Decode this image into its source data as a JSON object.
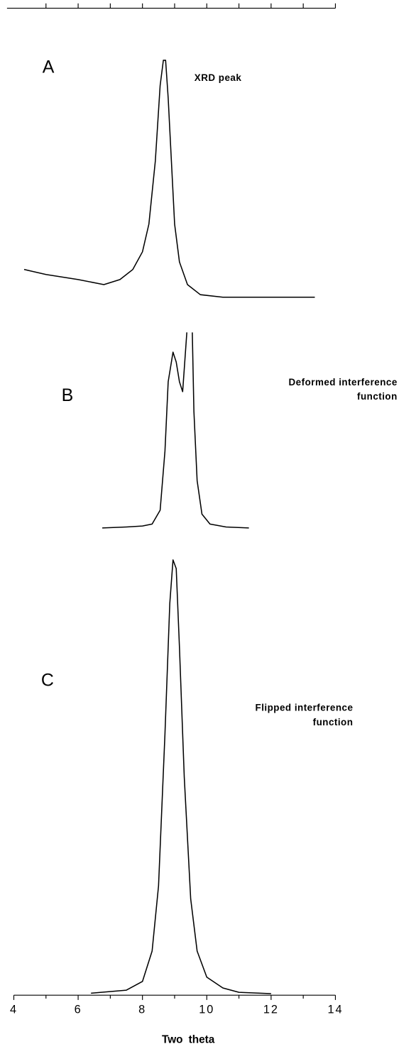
{
  "chart_data": [
    {
      "type": "line",
      "label": "A",
      "annotation": [
        "XRD peak"
      ],
      "color": "#000000",
      "xlim": [
        4,
        14
      ],
      "ylim": [
        0,
        100
      ],
      "xticks": [
        5,
        6,
        7,
        8,
        9,
        10,
        11,
        12,
        13,
        14
      ],
      "tick_labels": false,
      "x": [
        4.32,
        5,
        6,
        6.8,
        7.3,
        7.7,
        8.0,
        8.2,
        8.4,
        8.55,
        8.65,
        8.72,
        8.8,
        8.9,
        9.0,
        9.15,
        9.4,
        9.8,
        10.5,
        12,
        13.36
      ],
      "values": [
        12,
        10,
        8,
        6,
        8,
        12,
        19,
        30,
        55,
        85,
        95,
        95,
        80,
        55,
        30,
        15,
        6,
        2,
        1,
        1,
        1
      ]
    },
    {
      "type": "line",
      "label": "B",
      "annotation": [
        "Deformed  interference",
        "function"
      ],
      "color": "#000000",
      "xlim": [
        4,
        14
      ],
      "ylim": [
        0,
        100
      ],
      "x": [
        6.75,
        7.5,
        8.0,
        8.3,
        8.55,
        8.7,
        8.8,
        8.95,
        9.05,
        9.15,
        9.25,
        9.38,
        9.47,
        9.55,
        9.6,
        9.7,
        9.85,
        10.1,
        10.6,
        11.31
      ],
      "values": [
        1,
        1.5,
        2,
        3,
        10,
        40,
        75,
        90,
        85,
        75,
        70,
        100,
        null,
        100,
        60,
        25,
        8,
        3,
        1.5,
        1
      ]
    },
    {
      "type": "line",
      "label": "C",
      "annotation": [
        "Flipped  interference",
        "function"
      ],
      "color": "#000000",
      "xlim": [
        4,
        14
      ],
      "ylim": [
        0,
        100
      ],
      "xlabel": "Two theta",
      "xticks": [
        4,
        6,
        8,
        10,
        12,
        14
      ],
      "minor_xticks": [
        5,
        7,
        9,
        11,
        13
      ],
      "tick_labels": true,
      "x": [
        6.4,
        7.5,
        8.0,
        8.3,
        8.5,
        8.7,
        8.85,
        8.95,
        9.05,
        9.15,
        9.3,
        9.5,
        9.7,
        10,
        10.5,
        11,
        12
      ],
      "values": [
        0.3,
        1,
        3,
        10,
        25,
        60,
        90,
        100,
        98,
        80,
        50,
        22,
        10,
        4,
        1.5,
        0.5,
        0.2
      ]
    }
  ]
}
